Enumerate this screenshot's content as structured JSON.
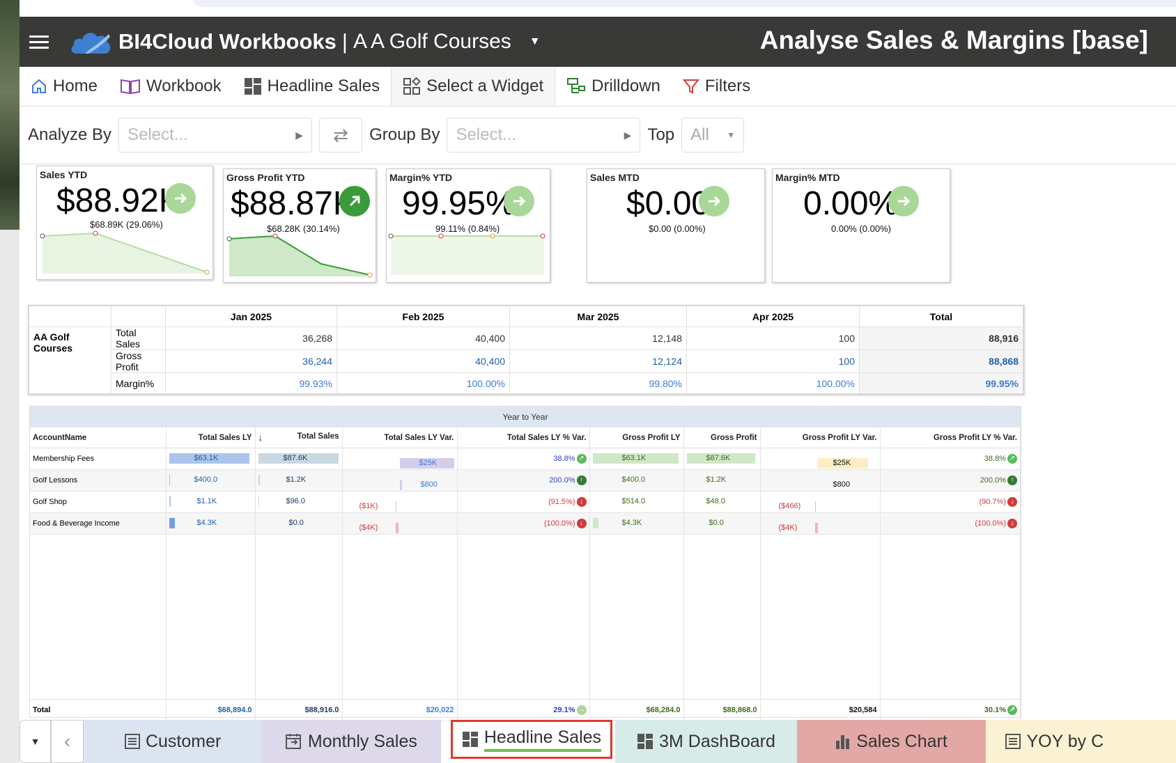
{
  "app": {
    "brand": "BI4Cloud Workbooks",
    "separator": "|",
    "org": "A A Golf Courses",
    "page_title": "Analyse Sales & Margins [base]"
  },
  "menu": [
    {
      "label": "Home",
      "icon": "home-icon"
    },
    {
      "label": "Workbook",
      "icon": "book-icon"
    },
    {
      "label": "Headline Sales",
      "icon": "dashboard-icon"
    },
    {
      "label": "Select a Widget",
      "icon": "widget-icon"
    },
    {
      "label": "Drilldown",
      "icon": "drilldown-icon"
    },
    {
      "label": "Filters",
      "icon": "filter-icon"
    }
  ],
  "filters": {
    "analyze_label": "Analyze By",
    "analyze_placeholder": "Select...",
    "group_label": "Group By",
    "group_placeholder": "Select...",
    "top_label": "Top",
    "top_value": "All"
  },
  "kpis": [
    {
      "title": "Sales YTD",
      "value": "$88.92K",
      "sub": "$68.89K (29.06%)",
      "arrow": "right",
      "color": "#a9d79a"
    },
    {
      "title": "Gross Profit YTD",
      "value": "$88.87K",
      "sub": "$68.28K (30.14%)",
      "arrow": "up-right",
      "color": "#3a9b3a"
    },
    {
      "title": "Margin% YTD",
      "value": "99.95%",
      "sub": "99.11% (0.84%)",
      "arrow": "right",
      "color": "#a9d79a"
    },
    {
      "title": "Sales MTD",
      "value": "$0.00",
      "sub": "$0.00 (0.00%)",
      "arrow": "right",
      "color": "#a9d79a"
    },
    {
      "title": "Margin% MTD",
      "value": "0.00%",
      "sub": "0.00% (0.00%)",
      "arrow": "right",
      "color": "#a9d79a"
    }
  ],
  "pivot": {
    "months": [
      "Jan 2025",
      "Feb 2025",
      "Mar 2025",
      "Apr 2025"
    ],
    "total_label": "Total",
    "group": "AA Golf Courses",
    "rows": [
      {
        "label": "Total Sales",
        "values": [
          "36,268",
          "40,400",
          "12,148",
          "100"
        ],
        "total": "88,916"
      },
      {
        "label": "Gross Profit",
        "values": [
          "36,244",
          "40,400",
          "12,124",
          "100"
        ],
        "total": "88,868"
      },
      {
        "label": "Margin%",
        "values": [
          "99.93%",
          "100.00%",
          "99.80%",
          "100.00%"
        ],
        "total": "99.95%"
      }
    ]
  },
  "yoy": {
    "header": "Year to Year",
    "sort_icon": "↓",
    "columns": [
      "AccountName",
      "Total Sales LY",
      "Total Sales",
      "Total Sales LY Var.",
      "Total Sales LY % Var.",
      "Gross Profit LY",
      "Gross Profit",
      "Gross Profit LY Var.",
      "Gross Profit LY % Var."
    ],
    "rows": [
      {
        "name": "Membership Fees",
        "sales_ly": "$63.1K",
        "sales": "$87.6K",
        "sales_var": "$25K",
        "sales_pct": "38.8%",
        "gp_ly": "$63.1K",
        "gp": "$87.6K",
        "gp_var": "$25K",
        "gp_pct": "38.8%",
        "trend": "up-small"
      },
      {
        "name": "Golf Lessons",
        "sales_ly": "$400.0",
        "sales": "$1.2K",
        "sales_var": "$800",
        "sales_pct": "200.0%",
        "gp_ly": "$400.0",
        "gp": "$1.2K",
        "gp_var": "$800",
        "gp_pct": "200.0%",
        "trend": "up"
      },
      {
        "name": "Golf Shop",
        "sales_ly": "$1.1K",
        "sales": "$96.0",
        "sales_var": "($1K)",
        "sales_pct": "(91.5%)",
        "gp_ly": "$514.0",
        "gp": "$48.0",
        "gp_var": "($466)",
        "gp_pct": "(90.7%)",
        "trend": "down"
      },
      {
        "name": "Food & Beverage Income",
        "sales_ly": "$4.3K",
        "sales": "$0.0",
        "sales_var": "($4K)",
        "sales_pct": "(100.0%)",
        "gp_ly": "$4.3K",
        "gp": "$0.0",
        "gp_var": "($4K)",
        "gp_pct": "(100.0%)",
        "trend": "down"
      }
    ],
    "totals": {
      "label": "Total",
      "sales_ly": "$68,894.0",
      "sales": "$88,916.0",
      "sales_var": "$20,022",
      "sales_pct": "29.1%",
      "gp_ly": "$68,284.0",
      "gp": "$88,868.0",
      "gp_var": "$20,584",
      "gp_pct": "30.1%"
    }
  },
  "tabs": [
    {
      "label": "Customer",
      "icon": "list-icon",
      "bg": "#dbe4f0"
    },
    {
      "label": "Monthly Sales",
      "icon": "calendar-icon",
      "bg": "#ddd8ea"
    },
    {
      "label": "Headline Sales",
      "icon": "dashboard-icon",
      "bg": "#ffffff",
      "active": true
    },
    {
      "label": "3M DashBoard",
      "icon": "dashboard-icon",
      "bg": "#d7ebe9"
    },
    {
      "label": "Sales Chart",
      "icon": "bar-chart-icon",
      "bg": "#e3a8a6"
    },
    {
      "label": "YOY by C",
      "icon": "list-icon",
      "bg": "#fbf1d3"
    }
  ],
  "colors": {
    "header_bg": "#393937",
    "accent_red": "#e0392b",
    "positive": "#3a9b3a",
    "negative": "#d23b3b"
  }
}
